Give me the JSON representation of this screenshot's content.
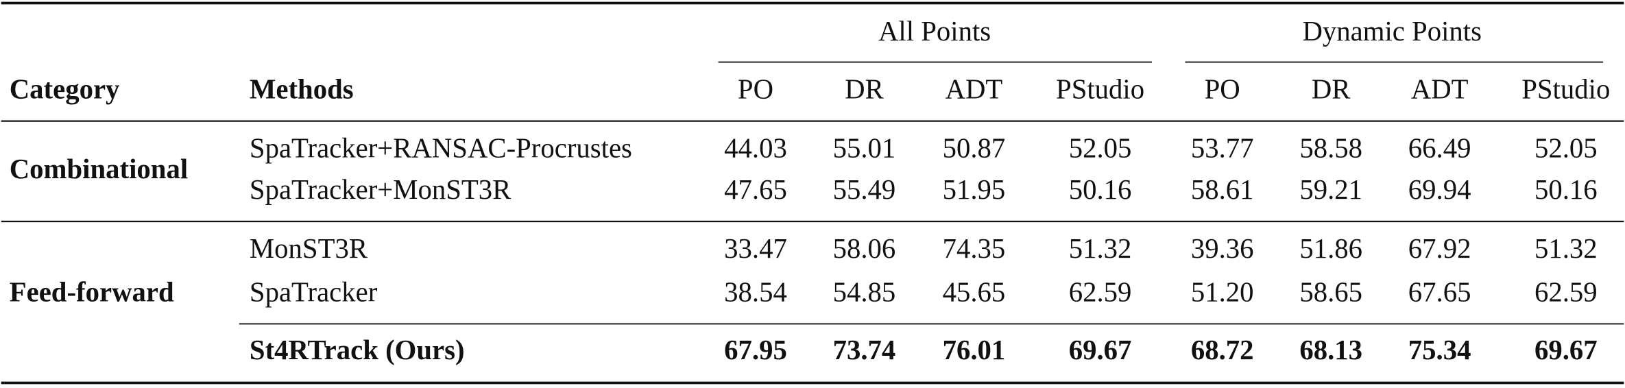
{
  "table": {
    "group_headers": [
      "All Points",
      "Dynamic Points"
    ],
    "columns": [
      "Category",
      "Methods",
      "PO",
      "DR",
      "ADT",
      "PStudio",
      "PO",
      "DR",
      "ADT",
      "PStudio"
    ],
    "groups": [
      {
        "category": "Combinational",
        "rows": [
          {
            "method": "SpaTracker+RANSAC-Procrustes",
            "values": [
              "44.03",
              "55.01",
              "50.87",
              "52.05",
              "53.77",
              "58.58",
              "66.49",
              "52.05"
            ]
          },
          {
            "method": "SpaTracker+MonST3R",
            "values": [
              "47.65",
              "55.49",
              "51.95",
              "50.16",
              "58.61",
              "59.21",
              "69.94",
              "50.16"
            ]
          }
        ]
      },
      {
        "category": "Feed-forward",
        "rows": [
          {
            "method": "MonST3R",
            "values": [
              "33.47",
              "58.06",
              "74.35",
              "51.32",
              "39.36",
              "51.86",
              "67.92",
              "51.32"
            ]
          },
          {
            "method": "SpaTracker",
            "values": [
              "38.54",
              "54.85",
              "45.65",
              "62.59",
              "51.20",
              "58.65",
              "67.65",
              "62.59"
            ]
          },
          {
            "method": "St4RTrack (Ours)",
            "values": [
              "67.95",
              "73.74",
              "76.01",
              "69.67",
              "68.72",
              "68.13",
              "75.34",
              "69.67"
            ]
          }
        ]
      }
    ]
  }
}
